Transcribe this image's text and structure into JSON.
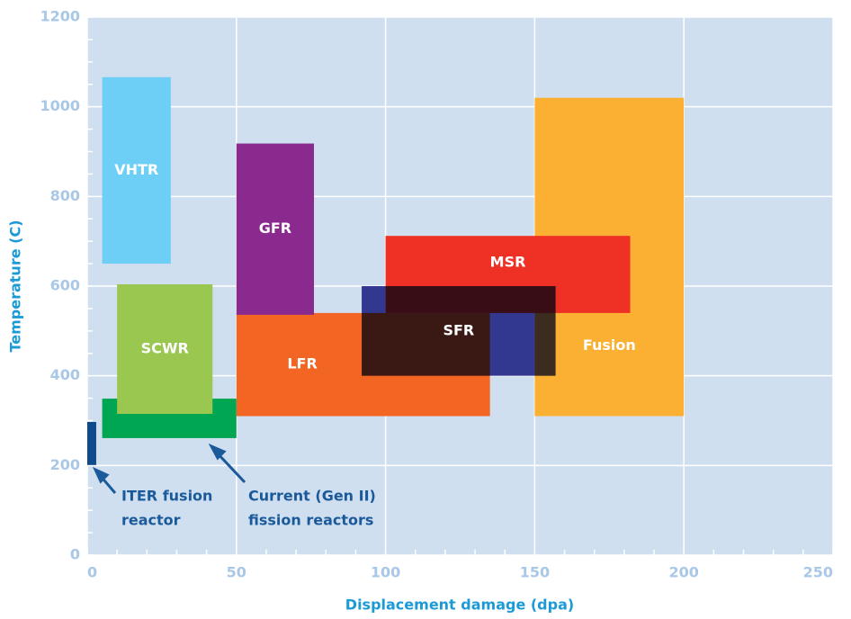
{
  "chart_data": {
    "type": "range-rect",
    "xlabel": "Displacement damage (dpa)",
    "ylabel": "Temperature (C)",
    "xlim": [
      0,
      250
    ],
    "xticks": [
      0,
      50,
      100,
      150,
      200,
      250
    ],
    "ylim": [
      0,
      1200
    ],
    "yticks": [
      0,
      200,
      400,
      600,
      800,
      1000,
      1200
    ],
    "grid": true,
    "regions": [
      {
        "name": "Fusion",
        "color": "#fbb034",
        "x": [
          150,
          200
        ],
        "y": [
          310,
          1020
        ]
      },
      {
        "name": "LFR",
        "color": "#f26522",
        "x": [
          50,
          135
        ],
        "y": [
          310,
          540
        ]
      },
      {
        "name": "MSR",
        "color": "#ee3124",
        "x": [
          100,
          182
        ],
        "y": [
          540,
          712
        ]
      },
      {
        "name": "GFR",
        "color": "#8a2a8f",
        "x": [
          50,
          76
        ],
        "y": [
          536,
          918
        ]
      },
      {
        "name": "SFR",
        "color": "#3d3f98",
        "x": [
          92,
          157
        ],
        "y": [
          400,
          600
        ]
      },
      {
        "name": "VHTR",
        "color": "#6dcff6",
        "x": [
          5,
          28
        ],
        "y": [
          650,
          1066
        ]
      },
      {
        "name": null,
        "color": "#00a651",
        "x": [
          5,
          50
        ],
        "y": [
          261,
          349
        ]
      },
      {
        "name": "SCWR",
        "color": "#99c74f",
        "x": [
          10,
          42
        ],
        "y": [
          315,
          604
        ]
      },
      {
        "name": null,
        "color": "#0d4b8c",
        "x": [
          0,
          3
        ],
        "y": [
          201,
          297
        ]
      }
    ],
    "annotations": [
      "ITER fusion",
      "reactor",
      "Current (Gen II)",
      "fission reactors"
    ]
  }
}
